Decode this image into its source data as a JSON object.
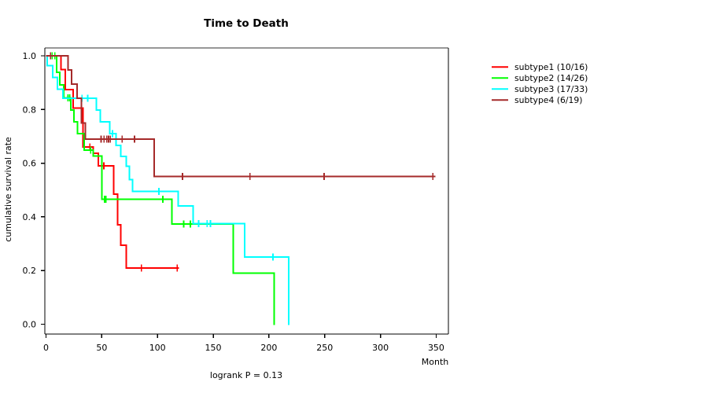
{
  "chart_data": {
    "type": "line",
    "variant": "kaplan-meier-step",
    "title": "Time to Death",
    "xlabel": "Month",
    "ylabel": "cumulative survival rate",
    "footnote": "logrank P = 0.13",
    "xlim": [
      0,
      362
    ],
    "ylim": [
      0.0,
      1.0
    ],
    "xticks": [
      0,
      50,
      100,
      150,
      200,
      250,
      300,
      350
    ],
    "ytick_values": [
      1.0,
      0.8,
      0.6,
      0.4,
      0.2,
      0.0
    ],
    "ytick_labels": [
      "1.0",
      "0.8",
      "0.6",
      "0.4",
      "0.2",
      "0.0"
    ],
    "grid": false,
    "legend_position": "right-outside",
    "series": [
      {
        "name": "subtype1 (10/16)",
        "color": "#FF0000",
        "steps": [
          [
            0,
            1.0
          ],
          [
            13.5,
            0.949
          ],
          [
            17.3,
            0.874
          ],
          [
            24.3,
            0.806
          ],
          [
            33,
            0.661
          ],
          [
            42.5,
            0.637
          ],
          [
            47,
            0.59
          ],
          [
            60.6,
            0.484
          ],
          [
            64.3,
            0.37
          ],
          [
            67.2,
            0.295
          ],
          [
            72,
            0.21
          ]
        ],
        "censors": [
          [
            39.4,
            0.661
          ],
          [
            51.9,
            0.59
          ],
          [
            85.5,
            0.21
          ],
          [
            117.7,
            0.21
          ]
        ],
        "end": 119.4
      },
      {
        "name": "subtype2 (14/26)",
        "color": "#00FF00",
        "steps": [
          [
            0,
            1.0
          ],
          [
            9.5,
            0.939
          ],
          [
            12.5,
            0.891
          ],
          [
            15.9,
            0.844
          ],
          [
            22.4,
            0.798
          ],
          [
            25.2,
            0.754
          ],
          [
            28.3,
            0.71
          ],
          [
            34.1,
            0.649
          ],
          [
            42.5,
            0.627
          ],
          [
            50.2,
            0.466
          ],
          [
            113,
            0.373
          ],
          [
            167.8,
            0.19
          ],
          [
            204.8,
            0.0
          ]
        ],
        "censors": [
          [
            5.5,
            1.0
          ],
          [
            7.9,
            1.0
          ],
          [
            19.7,
            0.844
          ],
          [
            21.4,
            0.844
          ],
          [
            40.1,
            0.649
          ],
          [
            52.6,
            0.466
          ],
          [
            53.8,
            0.466
          ],
          [
            104.8,
            0.466
          ],
          [
            123.6,
            0.373
          ],
          [
            129.5,
            0.373
          ]
        ],
        "end": 205.4
      },
      {
        "name": "subtype3 (17/33)",
        "color": "#00FFFF",
        "steps": [
          [
            0,
            1.0
          ],
          [
            1.2,
            0.964
          ],
          [
            6,
            0.92
          ],
          [
            10.3,
            0.876
          ],
          [
            15,
            0.842
          ],
          [
            45.3,
            0.798
          ],
          [
            48.8,
            0.754
          ],
          [
            57,
            0.71
          ],
          [
            62.9,
            0.666
          ],
          [
            67.2,
            0.625
          ],
          [
            72,
            0.588
          ],
          [
            74.7,
            0.539
          ],
          [
            77.8,
            0.495
          ],
          [
            118.4,
            0.44
          ],
          [
            131.8,
            0.375
          ],
          [
            178.2,
            0.25
          ],
          [
            217.7,
            0.0
          ]
        ],
        "censors": [
          [
            32.3,
            0.842
          ],
          [
            37.3,
            0.842
          ],
          [
            59.6,
            0.71
          ],
          [
            101.3,
            0.495
          ],
          [
            137,
            0.375
          ],
          [
            144.5,
            0.375
          ],
          [
            147.5,
            0.375
          ],
          [
            203.6,
            0.25
          ]
        ],
        "end": 218.3
      },
      {
        "name": "subtype4 (6/19)",
        "color": "#A52A2A",
        "steps": [
          [
            0,
            1.0
          ],
          [
            19.6,
            0.947
          ],
          [
            23,
            0.895
          ],
          [
            28,
            0.842
          ],
          [
            31.6,
            0.75
          ],
          [
            35.4,
            0.69
          ],
          [
            97.2,
            0.551
          ]
        ],
        "censors": [
          [
            4.1,
            1.0
          ],
          [
            49.5,
            0.69
          ],
          [
            52,
            0.69
          ],
          [
            54.5,
            0.69
          ],
          [
            56,
            0.69
          ],
          [
            57.7,
            0.69
          ],
          [
            68.3,
            0.69
          ],
          [
            79.4,
            0.69
          ],
          [
            122.4,
            0.551
          ],
          [
            183,
            0.551
          ],
          [
            249.5,
            0.551
          ],
          [
            347.1,
            0.551
          ]
        ],
        "end": 349.5
      }
    ]
  }
}
